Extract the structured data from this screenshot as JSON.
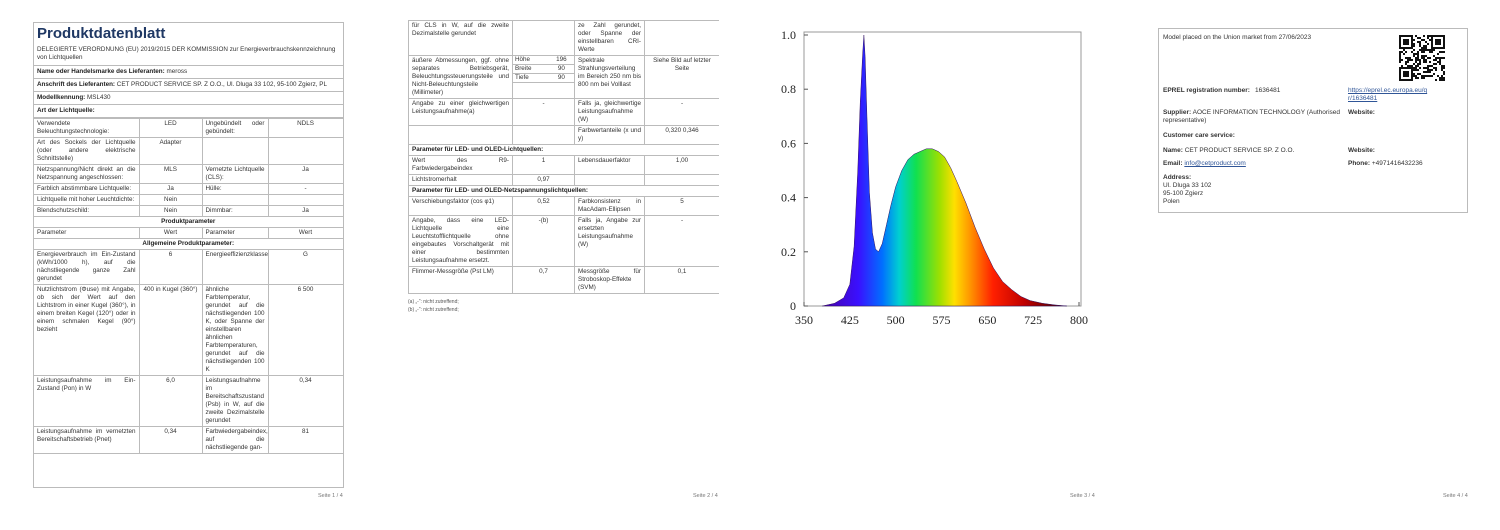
{
  "pages": [
    {
      "title": "Produktdatenblatt",
      "intro": "DELEGIERTE VERORDNUNG (EU) 2019/2015 DER KOMMISSION zur Energieverbrauchskennzeichnung von Lichtquellen",
      "info": [
        [
          "Name oder Handelsmarke des Lieferanten:",
          "meross"
        ],
        [
          "Anschrift des Lieferanten:",
          "CET PRODUCT SERVICE SP. Z O.O., Ul. Dluga 33 102, 95-100 Zgierz, PL"
        ],
        [
          "Modellkennung:",
          "MSL430"
        ],
        [
          "Art der Lichtquelle:"
        ]
      ],
      "table": [
        [
          "Verwendete Beleuchtungstechnologie:",
          "LED",
          "Ungebündelt oder gebündelt:",
          "NDLS"
        ],
        [
          "Art des Sockels der Lichtquelle (oder andere elektrische Schnittstelle)",
          "Adapter"
        ],
        [
          "Netzspannung/Nicht direkt an die Netzspannung angeschlossen:",
          "MLS",
          "Vernetzte Lichtquelle (CLS):",
          "Ja"
        ],
        [
          "Farblich abstimmbare Lichtquelle:",
          "Ja",
          "Hülle:",
          "-"
        ],
        [
          "Lichtquelle mit hoher Leuchtdichte:",
          "Nein"
        ],
        [
          "Blendschutzschild:",
          "Nein",
          "Dimmbar:",
          "Ja"
        ],
        [
          "Produktparameter"
        ],
        [
          "Parameter",
          "Wert",
          "Parameter",
          "Wert"
        ],
        [
          "Allgemeine Produktparameter:"
        ],
        [
          "Energieverbrauch im Ein-Zustand (kWh/1000 h), auf die nächstliegende ganze Zahl gerundet",
          "6",
          "Energieeffizienzklasse",
          "G"
        ],
        [
          "Nutzlichtstrom (Φuse) mit Angabe, ob sich der Wert auf den Lichtstrom in einer Kugel (360°), in einem breiten Kegel (120°) oder in einem schmalen Kegel (90°) bezieht",
          "400 in Kugel (360°)",
          "ähnliche Farbtemperatur, gerundet auf die nächstliegenden 100 K, oder Spanne der einstellbaren ähnlichen Farbtemperaturen, gerundet auf die nächstliegenden 100 K",
          "6 500"
        ],
        [
          "Leistungsaufnahme im Ein-Zustand (Pon) in W",
          "6,0",
          "Leistungsaufnahme im Bereitschaftszustand (Psb) in W, auf die zweite Dezimalstelle gerundet",
          "0,34"
        ],
        [
          "Leistungsaufnahme im vernetzten Bereitschaftsbetrieb (Pnet)",
          "0,34",
          "Farbwiedergabeindex, auf die nächstliegende gan-",
          "81"
        ]
      ],
      "footer": "Seite 1 / 4"
    },
    {
      "table": [
        [
          "für CLS in W, auf die zweite Dezimalstelle gerundet",
          null,
          "ze Zahl gerundet, oder Spanne der einstellbaren CRI-Werte",
          null
        ],
        [
          "äußere Abmessungen, ggf. ohne separates Betriebsgerät, Beleuchtungssteuerungsteile und Nicht-Beleuchtungsteile (Millimeter)",
          [
            [
              "Höhe",
              "196"
            ],
            [
              "Breite",
              "90"
            ],
            [
              "Tiefe",
              "90"
            ]
          ],
          "Spektrale Strahlungsverteilung im Bereich 250 nm bis 800 nm bei Volllast",
          "Siehe Bild auf letzter Seite"
        ],
        [
          "Angabe zu einer gleichwertigen Leistungsaufnahme(a)",
          "-",
          "Falls ja, gleichwertige Leistungsaufnahme (W)",
          "-"
        ],
        [
          null,
          null,
          "Farbwertanteile (x und y)",
          "0,320 0,346"
        ],
        [
          "Parameter für LED- und OLED-Lichtquellen:"
        ],
        [
          "Wert des R9-Farbwiedergabeindex",
          "1",
          "Lebensdauerfaktor",
          "1,00"
        ],
        [
          "Lichtstromerhalt",
          "0,97"
        ],
        [
          "Parameter für LED- und OLED-Netzspannungslichtquellen:"
        ],
        [
          "Verschiebungsfaktor (cos φ1)",
          "0,52",
          "Farbkonsistenz in MacAdam-Ellipsen",
          "5"
        ],
        [
          "Angabe, dass eine LED-Lichtquelle eine Leuchtstofflichtquelle ohne eingebautes Vorschaltgerät mit einer bestimmten Leistungsaufnahme ersetzt.",
          "-(b)",
          "Falls ja, Angabe zur ersetzten Leistungsaufnahme (W)",
          "-"
        ],
        [
          "Flimmer-Messgröße (Pst LM)",
          "0,7",
          "Messgröße für Stroboskop-Effekte (SVM)",
          "0,1"
        ]
      ],
      "notes": [
        "(a) „-“: nicht zutreffend;",
        "(b) „-“: nicht zutreffend;"
      ],
      "footer": "Seite 2 / 4"
    },
    {
      "spectrum": {
        "x": [
          380,
          400,
          415,
          425,
          432,
          438,
          442,
          446,
          448,
          450,
          453,
          457,
          462,
          467,
          472,
          478,
          485,
          492,
          500,
          510,
          520,
          530,
          540,
          550,
          560,
          570,
          580,
          590,
          600,
          615,
          630,
          645,
          660,
          675,
          690,
          705,
          720,
          740,
          760,
          780
        ],
        "values": [
          0,
          0.01,
          0.03,
          0.08,
          0.22,
          0.5,
          0.75,
          0.93,
          1,
          0.92,
          0.7,
          0.42,
          0.27,
          0.21,
          0.2,
          0.23,
          0.3,
          0.37,
          0.44,
          0.5,
          0.54,
          0.56,
          0.57,
          0.58,
          0.58,
          0.57,
          0.55,
          0.51,
          0.46,
          0.38,
          0.29,
          0.21,
          0.14,
          0.09,
          0.06,
          0.035,
          0.02,
          0.01,
          0.004,
          0
        ],
        "xlim": [
          350,
          800
        ],
        "ylim": [
          0,
          1
        ],
        "xticks": [
          350,
          425,
          500,
          575,
          650,
          725,
          800
        ],
        "yticks": [
          0,
          0.2,
          0.4,
          0.6,
          0.8,
          {
            "value": 1,
            "label": "1.0"
          }
        ]
      },
      "footer": "Seite 3 / 4"
    },
    {
      "market": "Model placed on the Union market from 27/06/2023",
      "eprel_label": "EPREL registration number:",
      "eprel_number": "1636481",
      "eprel_link": "https://eprel.ec.europa.eu/qr/1636481",
      "supplier_label": "Supplier:",
      "supplier": "AOCE INFORMATION TECHNOLOGY (Authorised representative)",
      "website_label": "Website:",
      "care_label": "Customer care service:",
      "name_label": "Name:",
      "name": "CET PRODUCT SERVICE SP. Z O.O.",
      "website2_label": "Website:",
      "email_label": "Email:",
      "email": "info@cetproduct.com",
      "phone_label": "Phone:",
      "phone": "+4971416432236",
      "address_label": "Address:",
      "address": [
        "Ul. Dluga 33 102",
        "95-100 Zgierz",
        "Polen"
      ],
      "footer": "Seite 4 / 4"
    }
  ]
}
